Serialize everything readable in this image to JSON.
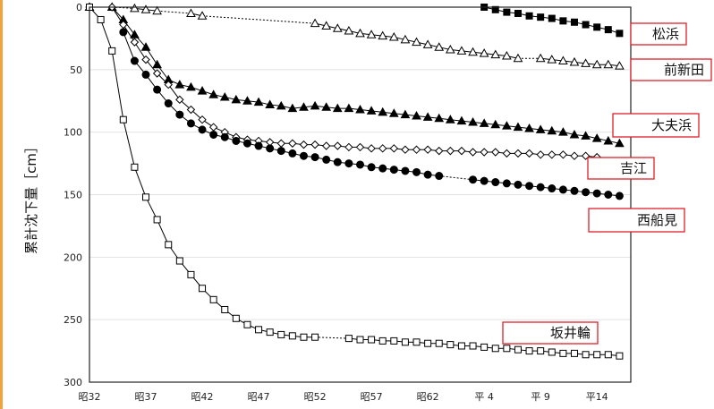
{
  "chart_data": {
    "type": "line",
    "ylabel": "累計沈下量［cm］",
    "y_reversed": true,
    "ylim": [
      0,
      300
    ],
    "yticks": [
      0,
      50,
      100,
      150,
      200,
      250,
      300
    ],
    "xlim": [
      32,
      80
    ],
    "x_ticks": [
      {
        "year": 32,
        "label": "昭32"
      },
      {
        "year": 37,
        "label": "昭37"
      },
      {
        "year": 42,
        "label": "昭42"
      },
      {
        "year": 47,
        "label": "昭47"
      },
      {
        "year": 52,
        "label": "昭52"
      },
      {
        "year": 57,
        "label": "昭57"
      },
      {
        "year": 62,
        "label": "昭62"
      },
      {
        "year": 67,
        "label": "平 4"
      },
      {
        "year": 72,
        "label": "平 9"
      },
      {
        "year": 77,
        "label": "平14"
      }
    ],
    "series": [
      {
        "name": "松浜",
        "marker": "filled-square",
        "x": [
          67,
          68,
          69,
          70,
          71,
          72,
          73,
          74,
          75,
          76,
          77,
          78,
          79
        ],
        "y": [
          0,
          2,
          4,
          5,
          7,
          8,
          9,
          11,
          12,
          14,
          16,
          18,
          21
        ]
      },
      {
        "name": "前新田",
        "marker": "open-triangle",
        "x": [
          32,
          34,
          36,
          37,
          38,
          41,
          42,
          52,
          53,
          54,
          55,
          56,
          57,
          58,
          59,
          60,
          61,
          62,
          63,
          64,
          65,
          66,
          67,
          68,
          69,
          70,
          72,
          73,
          74,
          75,
          76,
          77,
          78,
          79
        ],
        "y": [
          0,
          0,
          1,
          2,
          3,
          5,
          7,
          13,
          15,
          17,
          19,
          21,
          22,
          23,
          24,
          26,
          28,
          30,
          32,
          34,
          35,
          36,
          37,
          38,
          39,
          41,
          41,
          42,
          43,
          44,
          45,
          46,
          46,
          47
        ]
      },
      {
        "name": "大夫浜",
        "marker": "filled-triangle",
        "x": [
          32,
          34,
          35,
          36,
          37,
          38,
          39,
          40,
          41,
          42,
          43,
          44,
          45,
          46,
          47,
          48,
          49,
          50,
          51,
          52,
          53,
          54,
          55,
          56,
          57,
          58,
          59,
          60,
          61,
          62,
          63,
          64,
          65,
          66,
          67,
          68,
          69,
          70,
          71,
          72,
          73,
          74,
          75,
          76,
          77,
          78,
          79
        ],
        "y": [
          0,
          0,
          10,
          22,
          32,
          46,
          58,
          62,
          64,
          67,
          70,
          72,
          74,
          75,
          76,
          78,
          79,
          81,
          80,
          79,
          80,
          81,
          81,
          82,
          83,
          84,
          85,
          86,
          87,
          88,
          89,
          90,
          91,
          92,
          93,
          94,
          95,
          96,
          97,
          98,
          99,
          100,
          102,
          103,
          105,
          107,
          109
        ]
      },
      {
        "name": "吉江",
        "marker": "open-diamond",
        "x": [
          32,
          34,
          35,
          36,
          37,
          38,
          39,
          40,
          41,
          42,
          43,
          44,
          45,
          46,
          47,
          48,
          49,
          50,
          51,
          52,
          53,
          54,
          55,
          56,
          57,
          58,
          59,
          60,
          61,
          62,
          63,
          64,
          65,
          66,
          67,
          68,
          69,
          70,
          71,
          72,
          73,
          74,
          75,
          76,
          77
        ],
        "y": [
          0,
          0,
          14,
          28,
          42,
          53,
          62,
          74,
          82,
          90,
          96,
          100,
          104,
          106,
          107,
          108,
          109,
          109,
          110,
          110,
          111,
          111,
          112,
          112,
          113,
          113,
          113,
          114,
          114,
          114,
          115,
          115,
          115,
          116,
          116,
          116,
          117,
          117,
          117,
          118,
          118,
          118,
          119,
          119,
          120
        ]
      },
      {
        "name": "西船見",
        "marker": "filled-circle",
        "x": [
          35,
          36,
          37,
          38,
          39,
          40,
          41,
          42,
          43,
          44,
          45,
          46,
          47,
          48,
          49,
          50,
          51,
          52,
          53,
          54,
          55,
          56,
          57,
          58,
          59,
          60,
          61,
          62,
          63,
          66,
          67,
          68,
          69,
          70,
          71,
          72,
          73,
          74,
          75,
          76,
          77,
          78,
          79
        ],
        "y": [
          20,
          43,
          54,
          66,
          77,
          86,
          93,
          98,
          102,
          104,
          107,
          109,
          111,
          113,
          115,
          117,
          119,
          120,
          122,
          124,
          125,
          126,
          128,
          129,
          130,
          131,
          132,
          134,
          135,
          138,
          139,
          140,
          141,
          142,
          143,
          144,
          145,
          146,
          147,
          148,
          149,
          150,
          151
        ]
      },
      {
        "name": "坂井輪",
        "marker": "open-square",
        "x": [
          32,
          33,
          34,
          35,
          36,
          37,
          38,
          39,
          40,
          41,
          42,
          43,
          44,
          45,
          46,
          47,
          48,
          49,
          50,
          51,
          52,
          55,
          56,
          57,
          58,
          59,
          60,
          61,
          62,
          63,
          64,
          65,
          66,
          67,
          68,
          69,
          70,
          71,
          72,
          73,
          74,
          75,
          76,
          77,
          78,
          79
        ],
        "y": [
          0,
          10,
          35,
          90,
          128,
          152,
          170,
          190,
          203,
          214,
          225,
          234,
          242,
          249,
          254,
          258,
          260,
          262,
          263,
          264,
          264,
          265,
          266,
          266,
          267,
          267,
          268,
          268,
          269,
          269,
          270,
          271,
          271,
          272,
          273,
          273,
          274,
          275,
          275,
          276,
          277,
          277,
          278,
          278,
          278,
          279
        ]
      }
    ]
  }
}
